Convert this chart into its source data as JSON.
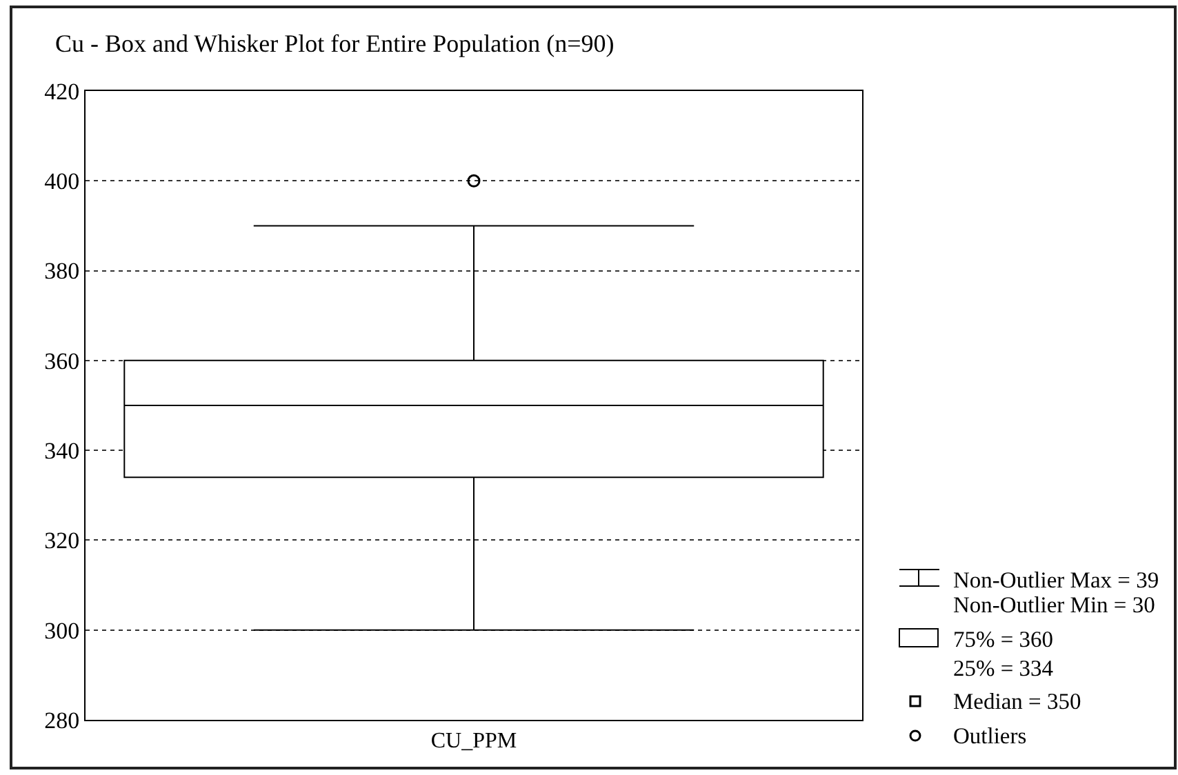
{
  "chart_data": {
    "type": "box",
    "title": "Cu - Box and Whisker Plot for Entire Population (n=90)",
    "categories": [
      "CU_PPM"
    ],
    "series": [
      {
        "color": "#000000",
        "boxes": [
          {
            "low": 300,
            "q1": 334,
            "median": 350,
            "q3": 360,
            "high": 390,
            "outliers": [
              400
            ]
          }
        ]
      }
    ],
    "ylim": [
      280,
      420
    ],
    "yticks": [
      280,
      300,
      320,
      340,
      360,
      380,
      400,
      420
    ],
    "grid": "y",
    "annotations": [
      "Non-Outlier Max = 39",
      "Non-Outlier Min = 30",
      "75% = 360",
      "25% = 334",
      "Median = 350",
      "Outliers"
    ]
  }
}
